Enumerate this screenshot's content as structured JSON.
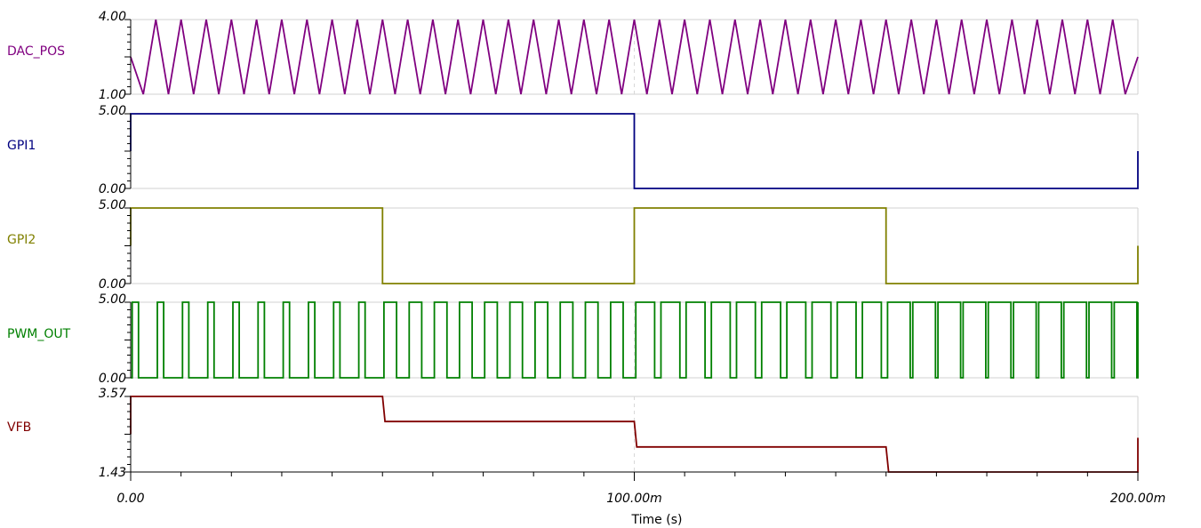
{
  "chart_data": {
    "type": "line",
    "xlabel": "Time (s)",
    "xlim": [
      0,
      0.2
    ],
    "x_tick_labels": [
      "0.00",
      "100.00m",
      "200.00m"
    ],
    "grid": true,
    "series": [
      {
        "name": "DAC_POS",
        "color": "#800080",
        "ylim": [
          1.0,
          4.0
        ],
        "y_tick_labels": [
          "4.00",
          "1.00"
        ],
        "waveform": "triangle",
        "period_s": 0.005,
        "min": 1.0,
        "max": 4.0
      },
      {
        "name": "GPI1",
        "color": "#000080",
        "ylim": [
          0.0,
          5.0
        ],
        "y_tick_labels": [
          "5.00",
          "0.00"
        ],
        "waveform": "step",
        "x": [
          0,
          0.1,
          0.1,
          0.2,
          0.2
        ],
        "y": [
          5,
          5,
          0,
          0,
          2.5
        ]
      },
      {
        "name": "GPI2",
        "color": "#808000",
        "ylim": [
          0.0,
          5.0
        ],
        "y_tick_labels": [
          "5.00",
          "0.00"
        ],
        "waveform": "step",
        "x": [
          0,
          0.05,
          0.05,
          0.1,
          0.1,
          0.15,
          0.15,
          0.2,
          0.2
        ],
        "y": [
          5,
          5,
          0,
          0,
          5,
          5,
          0,
          0,
          2.5
        ]
      },
      {
        "name": "PWM_OUT",
        "color": "#008000",
        "ylim": [
          0.0,
          5.0
        ],
        "y_tick_labels": [
          "5.00",
          "0.00"
        ],
        "waveform": "pwm",
        "period_s": 0.005,
        "duty_by_segment": [
          {
            "from": 0.0,
            "to": 0.05,
            "duty": 0.25
          },
          {
            "from": 0.05,
            "to": 0.1,
            "duty": 0.5
          },
          {
            "from": 0.1,
            "to": 0.15,
            "duty": 0.75
          },
          {
            "from": 0.15,
            "to": 0.2,
            "duty": 0.9
          }
        ]
      },
      {
        "name": "VFB",
        "color": "#800000",
        "ylim": [
          1.43,
          3.57
        ],
        "y_tick_labels": [
          "3.57",
          "1.43"
        ],
        "waveform": "step",
        "x": [
          0,
          0.05,
          0.0505,
          0.1,
          0.1005,
          0.15,
          0.1505,
          0.2,
          0.2
        ],
        "y": [
          3.57,
          3.57,
          2.86,
          2.86,
          2.14,
          2.14,
          1.43,
          1.43,
          2.4
        ]
      }
    ]
  }
}
